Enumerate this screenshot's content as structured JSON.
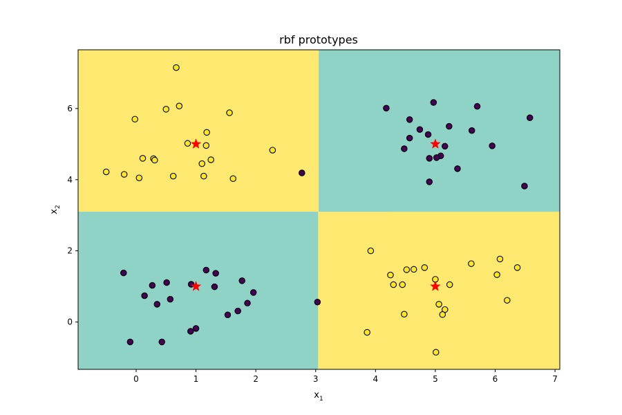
{
  "chart_data": {
    "type": "scatter",
    "title": "rbf prototypes",
    "xlabel_base": "x",
    "xlabel_sub": "1",
    "ylabel_base": "x",
    "ylabel_sub": "2",
    "xlim": [
      -0.97,
      7.08
    ],
    "ylim": [
      -1.33,
      7.65
    ],
    "xticks": [
      0,
      1,
      2,
      3,
      4,
      5,
      6,
      7
    ],
    "yticks": [
      0,
      2,
      4,
      6
    ],
    "grid": false,
    "colors": {
      "region_class0": "#fde96f",
      "region_class1": "#8fd3c7",
      "class0_point_fill": "#fde725",
      "class1_point_fill": "#440154",
      "point_edge": "#000000",
      "prototype": "#ff0000"
    },
    "decision_regions": [
      {
        "class": 0,
        "corner": "top-left"
      },
      {
        "class": 1,
        "corner": "top-right"
      },
      {
        "class": 1,
        "corner": "bottom-left"
      },
      {
        "class": 0,
        "corner": "bottom-right"
      }
    ],
    "prototypes": [
      {
        "x": 1,
        "y": 5
      },
      {
        "x": 5,
        "y": 5
      },
      {
        "x": 1,
        "y": 1
      },
      {
        "x": 5,
        "y": 1
      }
    ],
    "series": [
      {
        "class": 0,
        "points": [
          [
            0.67,
            7.15
          ],
          [
            -0.02,
            5.7
          ],
          [
            0.5,
            5.98
          ],
          [
            0.72,
            6.07
          ],
          [
            1.56,
            5.88
          ],
          [
            1.18,
            5.33
          ],
          [
            0.86,
            5.02
          ],
          [
            1.17,
            4.96
          ],
          [
            2.28,
            4.83
          ],
          [
            0.11,
            4.6
          ],
          [
            0.29,
            4.59
          ],
          [
            0.31,
            4.55
          ],
          [
            1.25,
            4.56
          ],
          [
            1.1,
            4.45
          ],
          [
            -0.5,
            4.22
          ],
          [
            -0.2,
            4.15
          ],
          [
            0.05,
            4.05
          ],
          [
            0.62,
            4.1
          ],
          [
            1.13,
            4.1
          ],
          [
            1.62,
            4.03
          ],
          [
            3.92,
            2.0
          ],
          [
            4.25,
            1.32
          ],
          [
            4.52,
            1.47
          ],
          [
            4.64,
            1.48
          ],
          [
            4.82,
            1.53
          ],
          [
            5.6,
            1.64
          ],
          [
            6.08,
            1.77
          ],
          [
            6.37,
            1.53
          ],
          [
            6.03,
            1.33
          ],
          [
            4.3,
            1.05
          ],
          [
            4.45,
            1.05
          ],
          [
            5.0,
            1.2
          ],
          [
            5.24,
            1.05
          ],
          [
            5.06,
            0.5
          ],
          [
            5.16,
            0.35
          ],
          [
            5.12,
            0.21
          ],
          [
            4.48,
            0.22
          ],
          [
            6.2,
            0.61
          ],
          [
            3.86,
            -0.29
          ],
          [
            5.01,
            -0.85
          ]
        ]
      },
      {
        "class": 1,
        "points": [
          [
            4.18,
            6.01
          ],
          [
            4.97,
            6.17
          ],
          [
            5.7,
            6.06
          ],
          [
            6.58,
            5.74
          ],
          [
            4.57,
            5.69
          ],
          [
            4.74,
            5.41
          ],
          [
            5.23,
            5.5
          ],
          [
            5.61,
            5.38
          ],
          [
            4.88,
            5.27
          ],
          [
            4.57,
            5.17
          ],
          [
            4.48,
            4.87
          ],
          [
            5.95,
            4.95
          ],
          [
            5.16,
            4.94
          ],
          [
            5.09,
            4.67
          ],
          [
            5.02,
            4.62
          ],
          [
            4.9,
            4.6
          ],
          [
            5.37,
            4.31
          ],
          [
            4.9,
            3.94
          ],
          [
            6.49,
            3.82
          ],
          [
            2.77,
            4.19
          ],
          [
            -0.21,
            1.38
          ],
          [
            1.17,
            1.46
          ],
          [
            1.33,
            1.37
          ],
          [
            1.77,
            1.16
          ],
          [
            0.51,
            1.11
          ],
          [
            0.27,
            1.03
          ],
          [
            0.92,
            1.06
          ],
          [
            1.31,
            0.99
          ],
          [
            1.96,
            0.83
          ],
          [
            0.14,
            0.74
          ],
          [
            0.57,
            0.64
          ],
          [
            0.35,
            0.5
          ],
          [
            1.86,
            0.53
          ],
          [
            1.7,
            0.31
          ],
          [
            1.53,
            0.2
          ],
          [
            1.0,
            -0.18
          ],
          [
            0.91,
            -0.26
          ],
          [
            -0.1,
            -0.56
          ],
          [
            0.43,
            -0.56
          ],
          [
            3.03,
            0.56
          ]
        ]
      }
    ]
  }
}
